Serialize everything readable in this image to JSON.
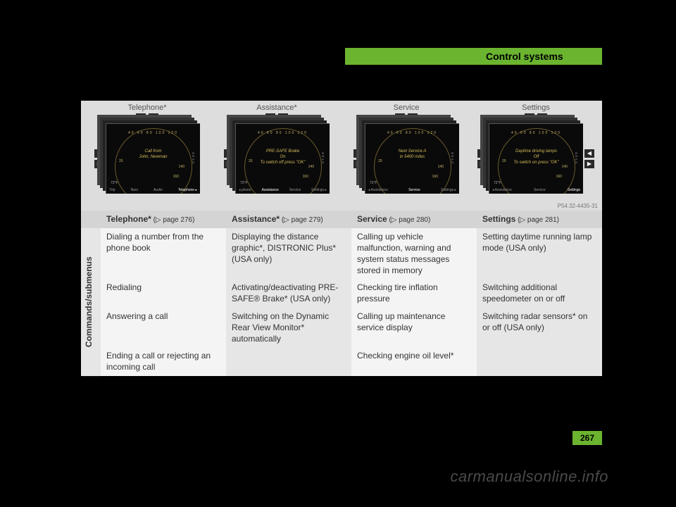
{
  "header": {
    "section_title": "Control systems"
  },
  "page_number": "267",
  "watermark": "carmanualsonline.info",
  "panel": {
    "image_code": "P54.32-4435-31",
    "dial_ticks": "40  60  80  100  120",
    "columns": [
      {
        "title": "Telephone*",
        "msg_line1": "Call from",
        "msg_line2": "John, Newman",
        "bottom_left": "72°F",
        "bottom_items_a": "Trip",
        "bottom_items_b": "Navi",
        "bottom_items_c": "Audio",
        "bottom_highlight": "Telephone ▸"
      },
      {
        "title": "Assistance*",
        "msg_line1": "PRE-SAFE Brake",
        "msg_line2": "On",
        "msg_line3": "To switch off press \"OK\"",
        "bottom_left": "72°F",
        "bottom_items_a": "◂ phone",
        "bottom_highlight": "Assistance",
        "bottom_items_b": "Service",
        "bottom_items_c": "Settings ▸"
      },
      {
        "title": "Service",
        "msg_line1": "Next Service A",
        "msg_line2": "in 5400 miles",
        "bottom_left": "72°F",
        "bottom_items_a": "◂ Assistance",
        "bottom_highlight": "Service",
        "bottom_items_c": "Settings ▸"
      },
      {
        "title": "Settings",
        "msg_line1": "Daytime driving lamps",
        "msg_line2": "Off",
        "msg_line3": "To switch on press \"OK\"",
        "bottom_left": "72°F",
        "bottom_items_a": "◂ Assistance",
        "bottom_items_b": "Service",
        "bottom_highlight": "Settings"
      }
    ]
  },
  "table": {
    "side_label": "Commands/submenus",
    "headers": [
      {
        "bold": "Telephone*",
        "rest": " (▷ page 276)"
      },
      {
        "bold": "Assistance*",
        "rest": " (▷ page 279)"
      },
      {
        "bold": "Service",
        "rest": " (▷ page 280)"
      },
      {
        "bold": "Settings",
        "rest": " (▷ page 281)"
      }
    ],
    "rows": [
      [
        "Dialing a number from the phone book",
        "Displaying the distance graphic*, DISTRONIC Plus* (USA only)",
        "Calling up vehicle malfunction, warning and system status messages stored in memory",
        "Setting daytime running lamp mode (USA only)"
      ],
      [
        "Redialing",
        "Activating/deactivating PRE-SAFE® Brake* (USA only)",
        "Checking tire inflation pressure",
        "Switching additional speedometer on or off"
      ],
      [
        "Answering a call",
        "Switching on the Dynamic Rear View Monitor* automatically",
        "Calling up maintenance service display",
        "Switching radar sensors* on or off (USA only)"
      ],
      [
        "Ending a call or rejecting an incoming call",
        "",
        "Checking engine oil level*",
        ""
      ]
    ]
  }
}
